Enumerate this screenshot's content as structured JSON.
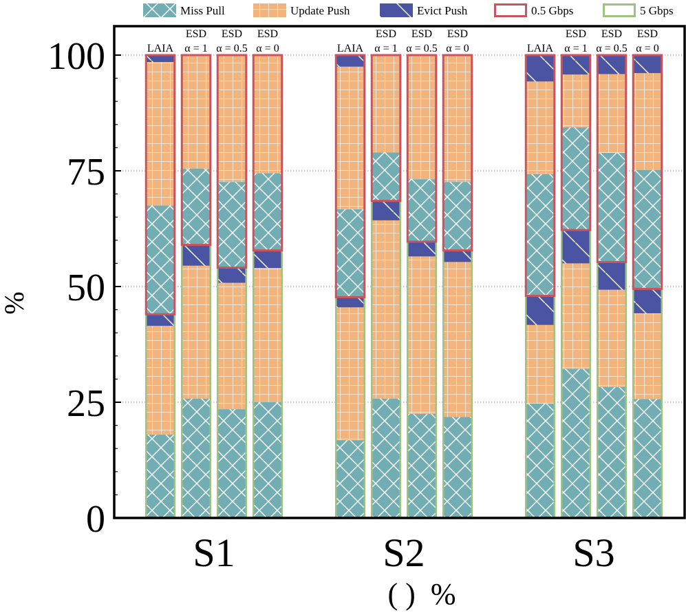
{
  "chart_data": {
    "type": "bar",
    "stacked": true,
    "xlabel": "( )  %",
    "ylabel": "%",
    "ylim": [
      0,
      100
    ],
    "yticks": [
      0,
      25,
      50,
      75,
      100
    ],
    "grid": "dotted horizontal",
    "legend_position": "top",
    "bar_labels": [
      {
        "line1": "",
        "line2": "LAIA"
      },
      {
        "line1": "ESD",
        "line2": "α = 1"
      },
      {
        "line1": "ESD",
        "line2": "α = 0.5"
      },
      {
        "line1": "ESD",
        "line2": "α = 0"
      }
    ],
    "legend": [
      {
        "label": "Miss Pull",
        "kind": "fill",
        "pattern": "cross",
        "color": "#72adb4"
      },
      {
        "label": "Update Push",
        "kind": "fill",
        "pattern": "grid",
        "color": "#f2b47e"
      },
      {
        "label": "Evict Push",
        "kind": "fill",
        "pattern": "diag",
        "color": "#4b53a3"
      },
      {
        "label": "0.5 Gbps",
        "kind": "outline",
        "color": "#c9545c"
      },
      {
        "label": "5 Gbps",
        "kind": "outline",
        "color": "#9ec37f"
      }
    ],
    "groups": [
      {
        "name": "S1",
        "bars": [
          {
            "five": [
              18,
              23.5,
              2.5
            ],
            "half": [
              23.5,
              31,
              1.5
            ]
          },
          {
            "five": [
              25.8,
              28.7,
              4.5
            ],
            "half": [
              16.5,
              24.5,
              0
            ]
          },
          {
            "five": [
              23.5,
              27.3,
              3.3
            ],
            "half": [
              18.5,
              27.4,
              0
            ]
          },
          {
            "five": [
              25,
              29,
              3.8
            ],
            "half": [
              16.7,
              25.5,
              0
            ]
          }
        ]
      },
      {
        "name": "S2",
        "bars": [
          {
            "five": [
              16.8,
              28.7,
              2.2
            ],
            "half": [
              19,
              30.8,
              2.5
            ]
          },
          {
            "five": [
              25.8,
              38.5,
              4.2
            ],
            "half": [
              10.5,
              21,
              0
            ]
          },
          {
            "five": [
              22.5,
              34,
              3.2
            ],
            "half": [
              13.5,
              26.8,
              0
            ]
          },
          {
            "five": [
              21.8,
              33.5,
              2.5
            ],
            "half": [
              14.8,
              27.4,
              0
            ]
          }
        ]
      },
      {
        "name": "S3",
        "bars": [
          {
            "five": [
              24.7,
              17,
              6.3
            ],
            "half": [
              26.3,
              20,
              5.7
            ]
          },
          {
            "five": [
              32.2,
              22.8,
              7.2
            ],
            "half": [
              22.2,
              11.4,
              4.2
            ]
          },
          {
            "five": [
              28.3,
              21,
              6
            ],
            "half": [
              23.6,
              17,
              4.1
            ]
          },
          {
            "five": [
              25.7,
              18.5,
              5.3
            ],
            "half": [
              25.7,
              20.9,
              3.9
            ]
          }
        ]
      }
    ]
  }
}
